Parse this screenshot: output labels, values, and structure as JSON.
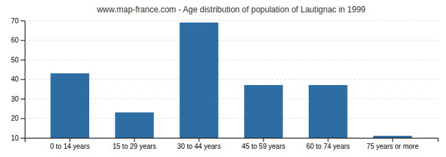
{
  "chart_data": {
    "type": "bar",
    "title": "www.map-france.com - Age distribution of population of Lautignac in 1999",
    "categories": [
      "0 to 14 years",
      "15 to 29 years",
      "30 to 44 years",
      "45 to 59 years",
      "60 to 74 years",
      "75 years or more"
    ],
    "values": [
      43,
      23,
      69,
      37,
      37,
      11
    ],
    "color": "#2e6da4",
    "ylim": [
      10,
      70
    ],
    "yticks": [
      10,
      20,
      30,
      40,
      50,
      60,
      70
    ],
    "grid": true
  }
}
